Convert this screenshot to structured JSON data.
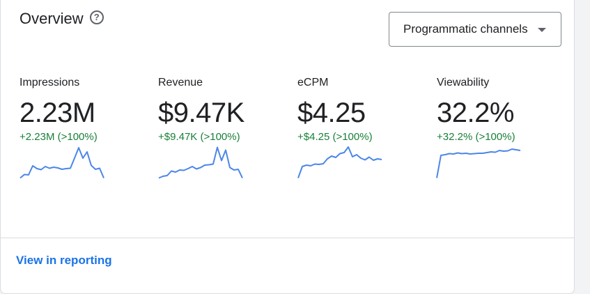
{
  "header": {
    "title": "Overview",
    "help_icon": "help-circle-icon",
    "dropdown_value": "Programmatic channels",
    "dropdown_icon": "arrow-drop-down-icon"
  },
  "metrics": [
    {
      "label": "Impressions",
      "value": "2.23M",
      "change": "+2.23M (>100%)",
      "trend": [
        0.05,
        0.15,
        0.14,
        0.4,
        0.32,
        0.29,
        0.38,
        0.33,
        0.36,
        0.34,
        0.3,
        0.32,
        0.33,
        0.62,
        0.92,
        0.62,
        0.8,
        0.41,
        0.3,
        0.33,
        0.05
      ]
    },
    {
      "label": "Revenue",
      "value": "$9.47K",
      "change": "+$9.47K (>100%)",
      "trend": [
        0.05,
        0.1,
        0.12,
        0.25,
        0.22,
        0.28,
        0.27,
        0.32,
        0.38,
        0.31,
        0.35,
        0.42,
        0.43,
        0.45,
        0.93,
        0.55,
        0.85,
        0.35,
        0.28,
        0.3,
        0.05
      ]
    },
    {
      "label": "eCPM",
      "value": "$4.25",
      "change": "+$4.25 (>100%)",
      "trend": [
        0.05,
        0.38,
        0.42,
        0.4,
        0.45,
        0.44,
        0.46,
        0.6,
        0.68,
        0.64,
        0.75,
        0.78,
        0.94,
        0.66,
        0.72,
        0.62,
        0.57,
        0.65,
        0.56,
        0.6,
        0.58
      ]
    },
    {
      "label": "Viewability",
      "value": "32.2%",
      "change": "+32.2% (>100%)",
      "trend": [
        0.05,
        0.7,
        0.72,
        0.75,
        0.74,
        0.77,
        0.75,
        0.76,
        0.74,
        0.75,
        0.76,
        0.76,
        0.78,
        0.8,
        0.79,
        0.84,
        0.82,
        0.83,
        0.88,
        0.86,
        0.84
      ]
    }
  ],
  "footer": {
    "link": "View in reporting"
  },
  "colors": {
    "accent": "#1a73e8",
    "positive": "#188038",
    "sparkline": "#4a86e8"
  }
}
